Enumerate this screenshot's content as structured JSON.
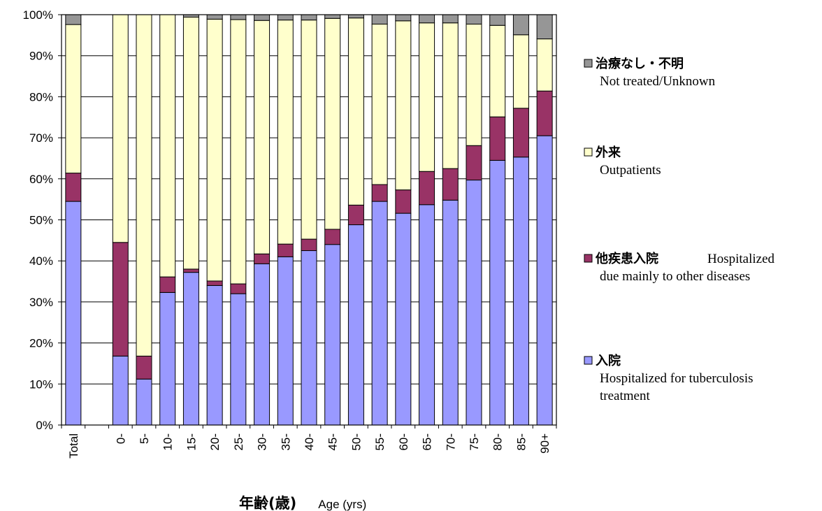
{
  "chart_data": {
    "type": "bar",
    "stacked": true,
    "normalized": true,
    "title": "",
    "xlabel": "年齢(歳)",
    "xlabel_en": "Age (yrs)",
    "ylabel": "",
    "ylim": [
      0,
      100
    ],
    "yticks": [
      "0%",
      "10%",
      "20%",
      "30%",
      "40%",
      "50%",
      "60%",
      "70%",
      "80%",
      "90%",
      "100%"
    ],
    "categories": [
      "Total",
      "",
      "0-",
      "5-",
      "10-",
      "15-",
      "20-",
      "25-",
      "30-",
      "35-",
      "40-",
      "45-",
      "50-",
      "55-",
      "60-",
      "65-",
      "70-",
      "75-",
      "80-",
      "85-",
      "90+"
    ],
    "series": [
      {
        "key": "hosp_tb",
        "name_jp": "入院",
        "name_en": "Hospitalized for tuberculosis treatment",
        "color": "#9999ff",
        "values": [
          54.5,
          null,
          16.8,
          11.2,
          32.3,
          37.2,
          34.0,
          32.0,
          39.3,
          41.0,
          42.5,
          44.0,
          48.8,
          54.5,
          51.6,
          53.7,
          54.8,
          59.7,
          64.5,
          65.3,
          70.5
        ]
      },
      {
        "key": "hosp_other",
        "name_jp": "他疾患入院",
        "name_en": "Hospitalized due mainly to other diseases",
        "color": "#993366",
        "values": [
          6.9,
          null,
          27.7,
          5.6,
          3.8,
          0.8,
          1.1,
          2.4,
          2.4,
          3.1,
          2.8,
          3.7,
          4.8,
          4.1,
          5.7,
          8.1,
          7.7,
          8.4,
          10.6,
          11.9,
          10.9
        ]
      },
      {
        "key": "outpatients",
        "name_jp": "外来",
        "name_en": "Outpatients",
        "color": "#ffffcc",
        "values": [
          36.2,
          null,
          55.5,
          83.2,
          63.9,
          61.4,
          63.8,
          64.4,
          56.9,
          54.6,
          53.4,
          51.4,
          45.6,
          39.1,
          41.2,
          36.2,
          35.5,
          29.6,
          22.3,
          17.9,
          12.7
        ]
      },
      {
        "key": "not_treated",
        "name_jp": "治療なし・不明",
        "name_en": "Not treated/Unknown",
        "color": "#969696",
        "values": [
          2.4,
          null,
          0.0,
          0.0,
          0.0,
          0.6,
          1.1,
          1.2,
          1.4,
          1.3,
          1.3,
          0.9,
          0.8,
          2.3,
          1.5,
          2.0,
          2.0,
          2.3,
          2.6,
          4.9,
          5.9
        ]
      }
    ],
    "legend": {
      "position": "right",
      "items": [
        {
          "series": "not_treated",
          "jp": "治療なし・不明",
          "en_lines": [
            "Not treated/Unknown"
          ]
        },
        {
          "series": "outpatients",
          "jp": "外来",
          "en_lines": [
            "Outpatients"
          ]
        },
        {
          "series": "hosp_other",
          "jp": "他疾患入院",
          "en_lines": [
            "Hospitalized",
            "due mainly  to other diseases"
          ]
        },
        {
          "series": "hosp_tb",
          "jp": "入院",
          "en_lines": [
            "Hospitalized for tuberculosis",
            "treatment"
          ]
        }
      ]
    },
    "grid": true
  }
}
